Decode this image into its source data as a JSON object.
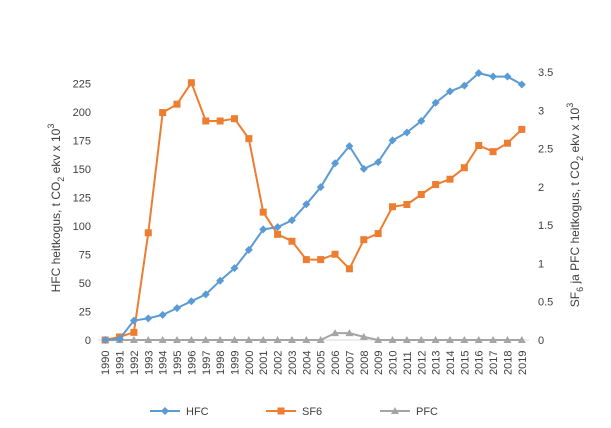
{
  "chart_data": {
    "type": "line",
    "x": [
      "1990",
      "1991",
      "1992",
      "1993",
      "1994",
      "1995",
      "1996",
      "1997",
      "1998",
      "1999",
      "2000",
      "2001",
      "2002",
      "2003",
      "2004",
      "2005",
      "2006",
      "2007",
      "2008",
      "2009",
      "2010",
      "2011",
      "2012",
      "2013",
      "2014",
      "2015",
      "2016",
      "2017",
      "2018",
      "2019"
    ],
    "series": [
      {
        "name": "HFC",
        "axis": "left",
        "color": "#5b9bd5",
        "marker": "diamond",
        "values": [
          0,
          1,
          17,
          19,
          22,
          28,
          34,
          40,
          52,
          63,
          79,
          97,
          99,
          105,
          119,
          134,
          155,
          170,
          150,
          156,
          175,
          182,
          192,
          208,
          218,
          223,
          234,
          231,
          231,
          224
        ]
      },
      {
        "name": "SF6",
        "axis": "right",
        "color": "#ed7d31",
        "marker": "square",
        "values": [
          0,
          0.04,
          0.1,
          1.4,
          2.97,
          3.08,
          3.36,
          2.86,
          2.86,
          2.89,
          2.63,
          1.67,
          1.38,
          1.29,
          1.05,
          1.05,
          1.12,
          0.93,
          1.31,
          1.39,
          1.74,
          1.77,
          1.9,
          2.03,
          2.1,
          2.25,
          2.54,
          2.46,
          2.57,
          2.75
        ]
      },
      {
        "name": "PFC",
        "axis": "right",
        "color": "#a5a5a5",
        "marker": "triangle",
        "values": [
          0,
          0,
          0,
          0,
          0,
          0,
          0,
          0,
          0,
          0,
          0,
          0,
          0,
          0,
          0,
          0,
          0.09,
          0.09,
          0.04,
          0,
          0,
          0,
          0,
          0,
          0,
          0,
          0,
          0,
          0,
          0
        ]
      }
    ],
    "y_left": {
      "ylim": [
        0,
        235
      ],
      "ticks": [
        0,
        25,
        50,
        75,
        100,
        125,
        150,
        175,
        200,
        225
      ],
      "label": {
        "prefix": "HFC heitkogus, t CO",
        "sub": "2",
        "mid": " ekv x 10",
        "sup": "3"
      }
    },
    "y_right": {
      "ylim": [
        0,
        3.5
      ],
      "ticks": [
        "0",
        "0.5",
        "1",
        "1.5",
        "2",
        "2.5",
        "3",
        "3.5"
      ],
      "tick_values": [
        0,
        0.5,
        1,
        1.5,
        2,
        2.5,
        3,
        3.5
      ],
      "label": {
        "pre": "SF",
        "sub1": "6",
        "mid1": " ja PFC heitkogus, t CO",
        "sub2": "2",
        "mid2": " ekv x 10",
        "sup": "3"
      }
    },
    "grid": false,
    "legend_position": "bottom"
  }
}
